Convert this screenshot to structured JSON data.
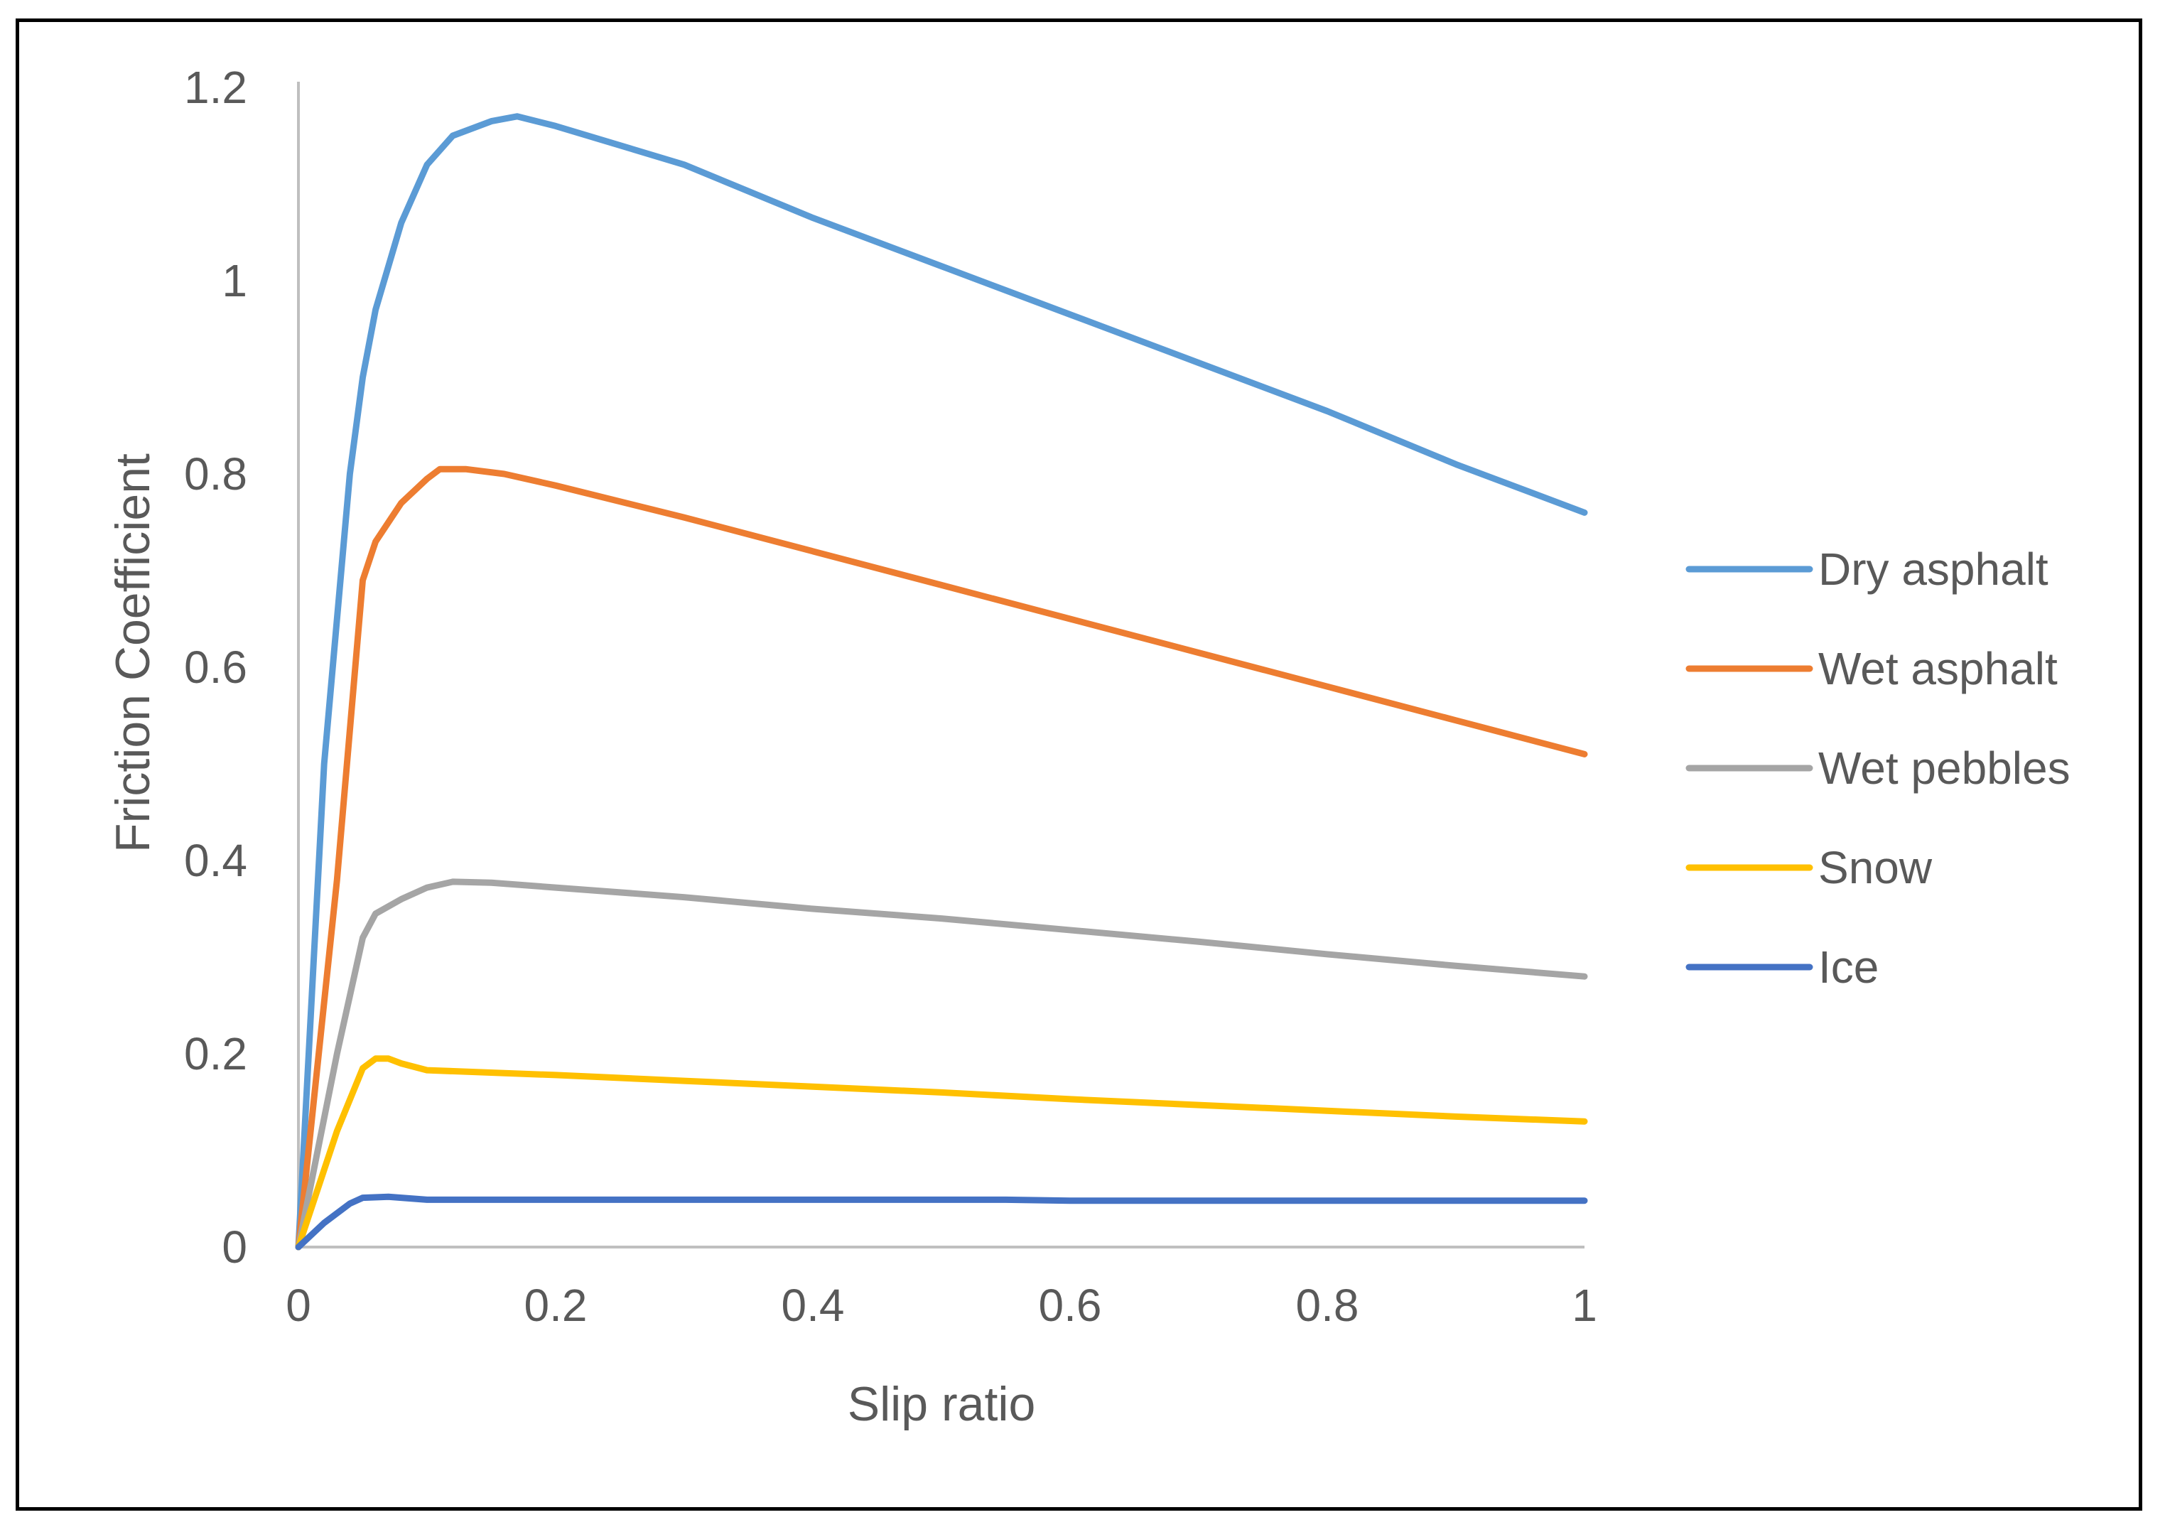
{
  "chart_data": {
    "type": "line",
    "title": "",
    "xlabel": "Slip ratio",
    "ylabel": "Friction Coefficient",
    "xlim": [
      0,
      1
    ],
    "ylim": [
      0,
      1.2
    ],
    "xticks": [
      0,
      0.2,
      0.4,
      0.6,
      0.8,
      1
    ],
    "xtick_labels": [
      "0",
      "0.2",
      "0.4",
      "0.6",
      "0.8",
      "1"
    ],
    "yticks": [
      0,
      0.2,
      0.4,
      0.6,
      0.8,
      1,
      1.2
    ],
    "ytick_labels": [
      "0",
      "0.2",
      "0.4",
      "0.6",
      "0.8",
      "1",
      "1.2"
    ],
    "grid": false,
    "legend_position": "right",
    "series": [
      {
        "name": "Dry asphalt",
        "color": "#5b9bd5",
        "x": [
          0,
          0.02,
          0.04,
          0.05,
          0.06,
          0.08,
          0.1,
          0.12,
          0.15,
          0.17,
          0.2,
          0.3,
          0.4,
          0.5,
          0.55,
          0.6,
          0.7,
          0.8,
          0.9,
          1.0
        ],
        "y": [
          0,
          0.5,
          0.8,
          0.9,
          0.97,
          1.06,
          1.12,
          1.15,
          1.165,
          1.17,
          1.16,
          1.12,
          1.065,
          1.015,
          0.99,
          0.965,
          0.915,
          0.865,
          0.81,
          0.76
        ]
      },
      {
        "name": "Wet asphalt",
        "color": "#ed7d31",
        "x": [
          0,
          0.03,
          0.05,
          0.06,
          0.08,
          0.1,
          0.11,
          0.13,
          0.16,
          0.2,
          0.3,
          0.4,
          0.5,
          0.6,
          0.7,
          0.8,
          0.9,
          1.0
        ],
        "y": [
          0,
          0.38,
          0.69,
          0.73,
          0.77,
          0.795,
          0.805,
          0.805,
          0.8,
          0.788,
          0.755,
          0.72,
          0.685,
          0.65,
          0.615,
          0.58,
          0.545,
          0.51
        ]
      },
      {
        "name": "Wet pebbles",
        "color": "#a5a5a5",
        "x": [
          0,
          0.03,
          0.05,
          0.06,
          0.08,
          0.1,
          0.12,
          0.15,
          0.2,
          0.3,
          0.4,
          0.5,
          0.6,
          0.7,
          0.8,
          0.9,
          1.0
        ],
        "y": [
          0,
          0.2,
          0.32,
          0.345,
          0.36,
          0.372,
          0.378,
          0.377,
          0.372,
          0.362,
          0.35,
          0.34,
          0.328,
          0.316,
          0.303,
          0.291,
          0.28
        ]
      },
      {
        "name": "Snow",
        "color": "#ffc000",
        "x": [
          0,
          0.03,
          0.05,
          0.06,
          0.07,
          0.08,
          0.1,
          0.2,
          0.3,
          0.4,
          0.5,
          0.6,
          0.7,
          0.8,
          0.9,
          1.0
        ],
        "y": [
          0,
          0.12,
          0.185,
          0.195,
          0.195,
          0.19,
          0.183,
          0.178,
          0.172,
          0.166,
          0.16,
          0.153,
          0.147,
          0.141,
          0.135,
          0.13
        ]
      },
      {
        "name": "Ice",
        "color": "#4472c4",
        "x": [
          0,
          0.02,
          0.04,
          0.05,
          0.07,
          0.1,
          0.2,
          0.3,
          0.4,
          0.55,
          0.6,
          0.8,
          1.0
        ],
        "y": [
          0,
          0.025,
          0.045,
          0.051,
          0.052,
          0.049,
          0.049,
          0.049,
          0.049,
          0.049,
          0.048,
          0.048,
          0.048
        ]
      }
    ]
  }
}
